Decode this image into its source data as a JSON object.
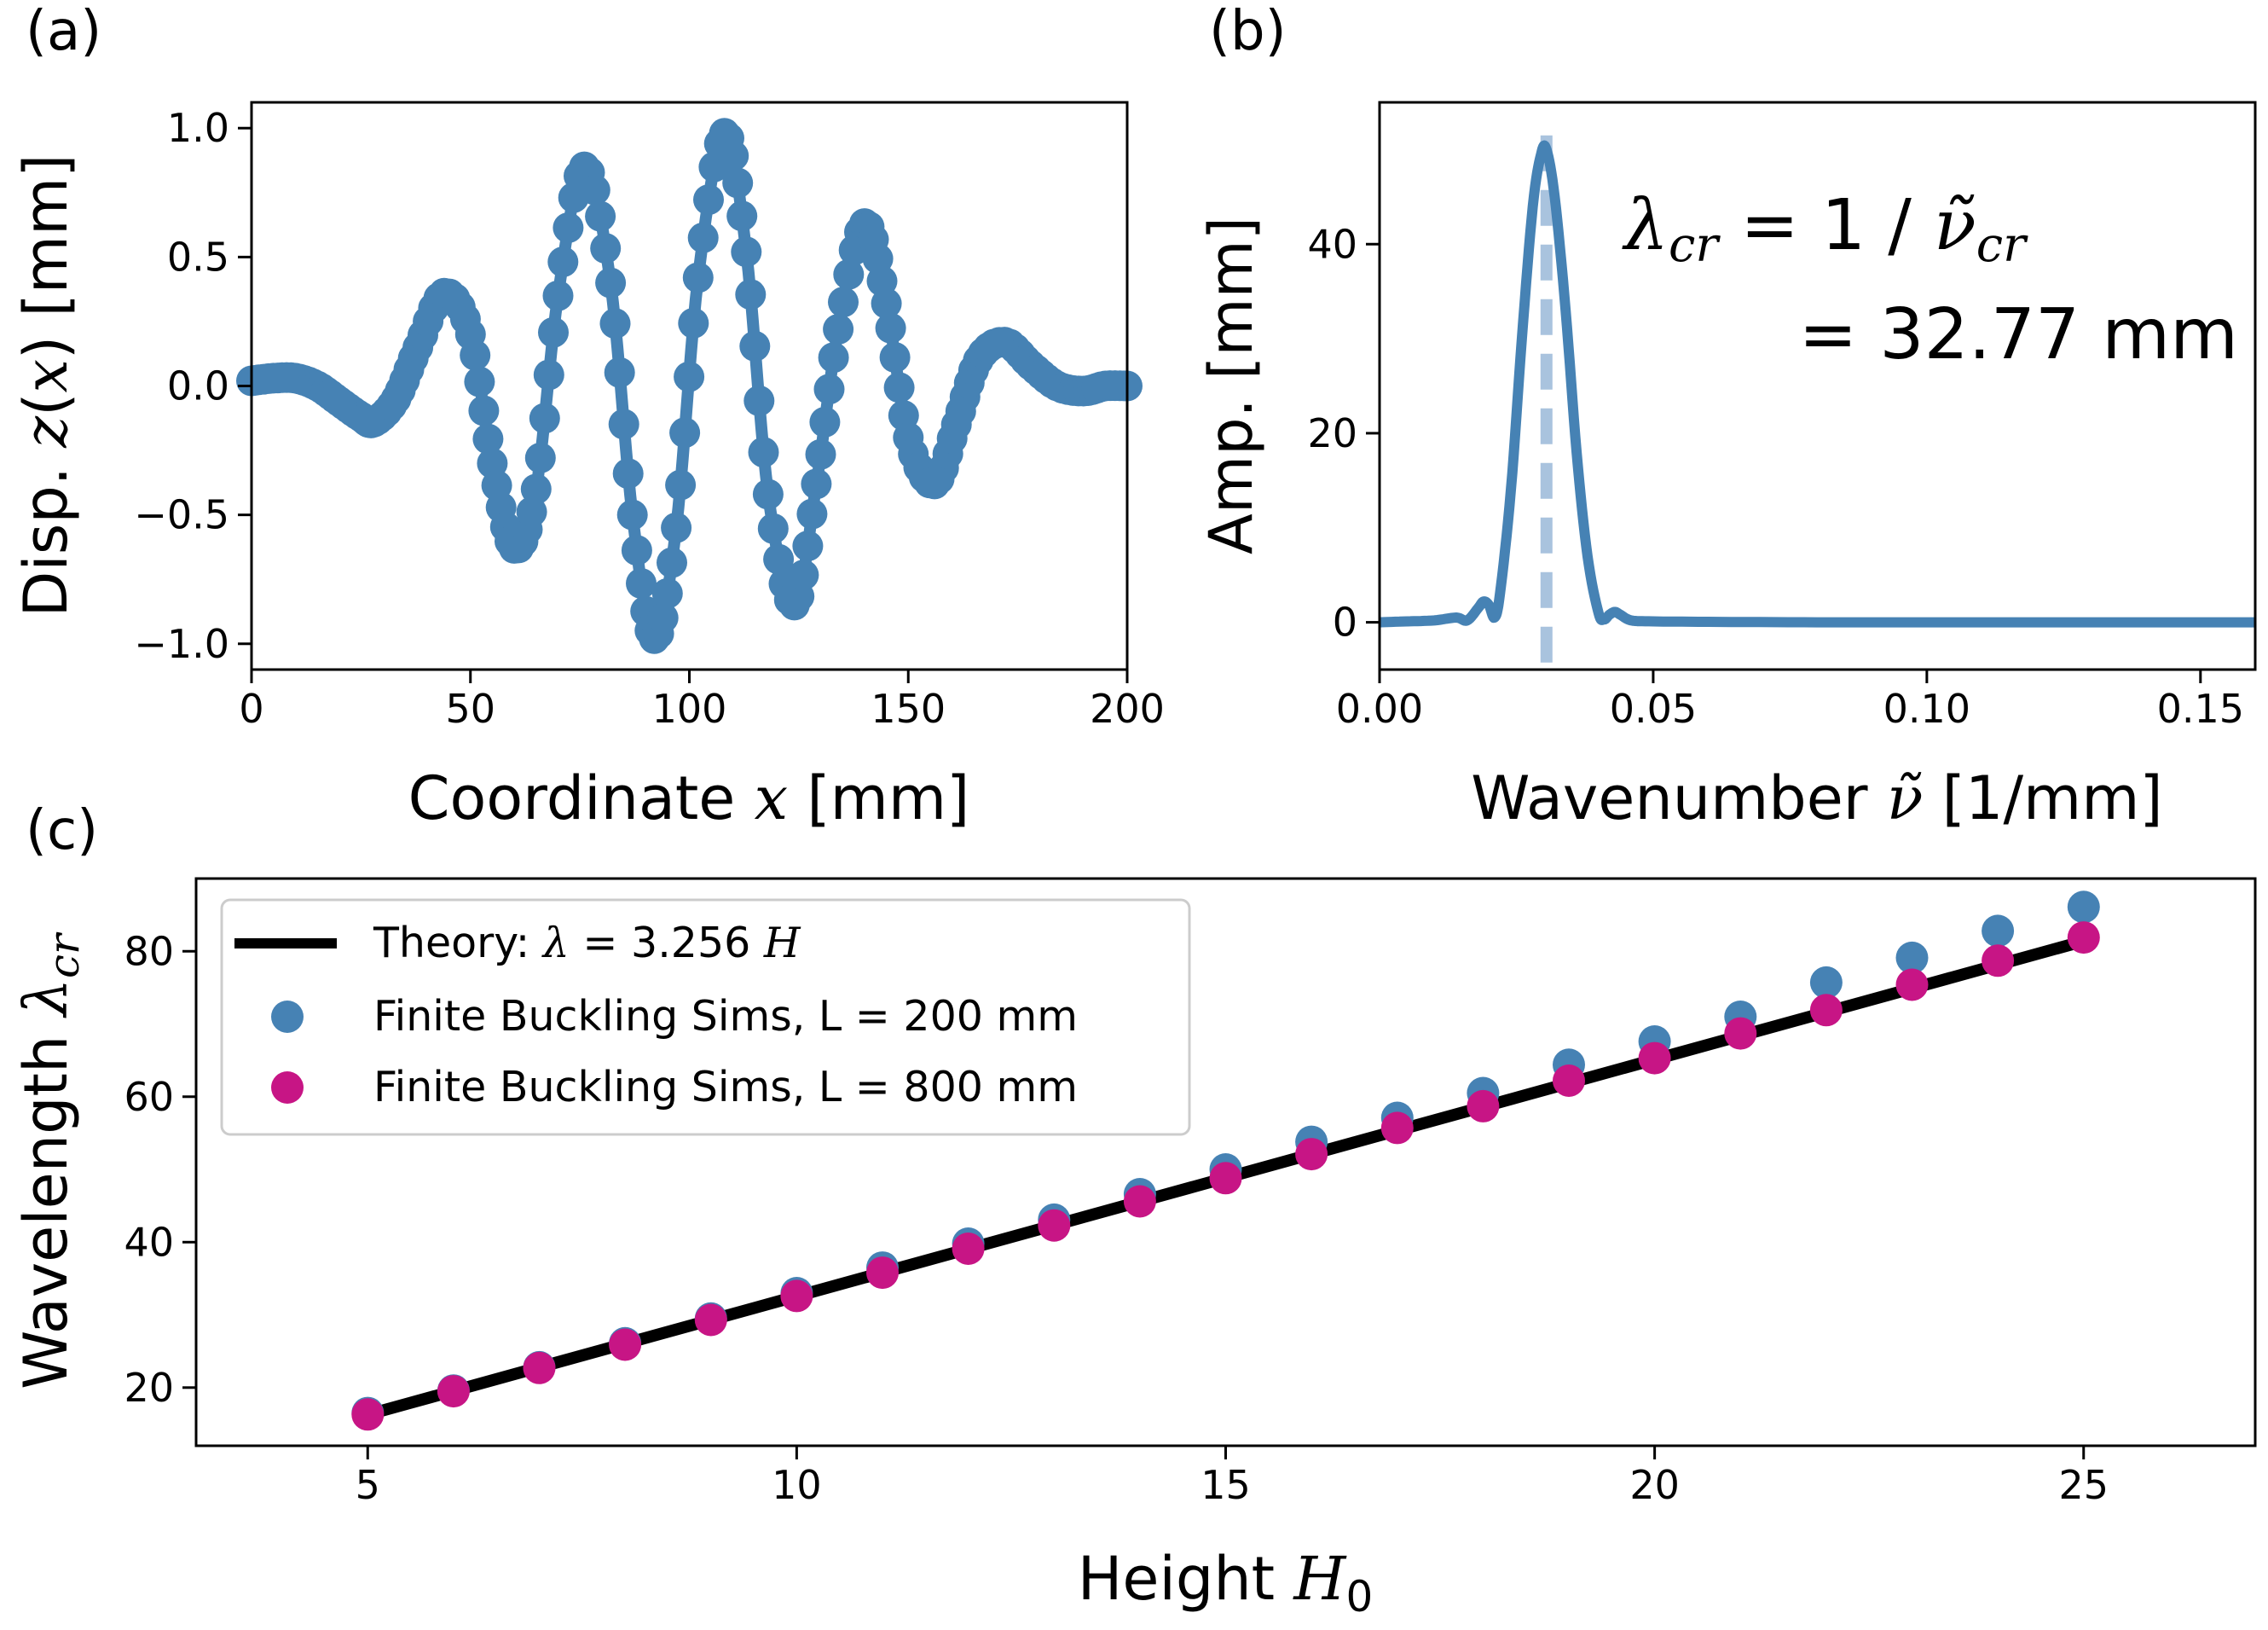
{
  "chart_data": [
    {
      "panel": "(a)",
      "type": "line",
      "xlabel": "Coordinate x [mm]",
      "ylabel": "Disp. z(x) [mm]",
      "xlim": [
        0,
        200
      ],
      "ylim": [
        -1.1,
        1.1
      ],
      "xticks": [
        0,
        50,
        100,
        150,
        200
      ],
      "yticks": [
        -1.0,
        -0.5,
        0.0,
        0.5,
        1.0
      ],
      "ytick_labels": [
        "−1.0",
        "−0.5",
        "0.0",
        "0.5",
        "1.0"
      ],
      "grid": false,
      "color": "#4682b4",
      "marker": "circle",
      "x": [
        0,
        5,
        10,
        15,
        20,
        25,
        28,
        33,
        38,
        44,
        50,
        55,
        60,
        65,
        70,
        76,
        82,
        87,
        92,
        97,
        102,
        108,
        113,
        118,
        124,
        129,
        134,
        140,
        145,
        150,
        156,
        161,
        166,
        172,
        178,
        184,
        190,
        195,
        200
      ],
      "y": [
        0.02,
        0.03,
        0.03,
        0.0,
        -0.06,
        -0.12,
        -0.14,
        -0.05,
        0.15,
        0.36,
        0.2,
        -0.3,
        -0.63,
        -0.4,
        0.35,
        0.85,
        0.4,
        -0.5,
        -0.98,
        -0.55,
        0.42,
        0.98,
        0.52,
        -0.42,
        -0.85,
        -0.38,
        0.22,
        0.63,
        0.32,
        -0.2,
        -0.38,
        -0.15,
        0.1,
        0.17,
        0.08,
        0.0,
        -0.02,
        0.0,
        0.0
      ]
    },
    {
      "panel": "(b)",
      "type": "line",
      "xlabel": "Wavenumber ν̃ [1/mm]",
      "ylabel": "Amp. [mm]",
      "xlim": [
        0,
        0.16
      ],
      "ylim": [
        -5,
        55
      ],
      "xticks": [
        0.0,
        0.05,
        0.1,
        0.15
      ],
      "xtick_labels": [
        "0.00",
        "0.05",
        "0.10",
        "0.15"
      ],
      "yticks": [
        0,
        20,
        40
      ],
      "grid": false,
      "color": "#4682b4",
      "x": [
        0.0,
        0.005,
        0.01,
        0.014,
        0.016,
        0.018,
        0.019,
        0.02,
        0.021,
        0.022,
        0.024,
        0.026,
        0.028,
        0.0295,
        0.0305,
        0.032,
        0.034,
        0.036,
        0.038,
        0.04,
        0.041,
        0.042,
        0.043,
        0.044,
        0.046,
        0.05,
        0.06,
        0.08,
        0.1,
        0.12,
        0.14,
        0.16
      ],
      "y": [
        0.0,
        0.1,
        0.2,
        0.5,
        0.2,
        1.5,
        2.2,
        1.8,
        0.5,
        3.0,
        14,
        30,
        44,
        49.5,
        50,
        45,
        33,
        18,
        7,
        1.0,
        0.3,
        0.8,
        1.1,
        0.8,
        0.2,
        0.1,
        0.05,
        0.0,
        0.0,
        0.0,
        0.0,
        0.0
      ],
      "vline_x": 0.0305,
      "annotation_line1": "λcr = 1 / ν̃cr",
      "annotation_line2": "= 32.77 mm"
    },
    {
      "panel": "(c)",
      "type": "scatter",
      "xlabel": "Height H0",
      "ylabel": "Wavelength λcr",
      "xlim": [
        3,
        27
      ],
      "ylim": [
        12,
        90
      ],
      "xticks": [
        5,
        10,
        15,
        20,
        25
      ],
      "yticks": [
        20,
        40,
        60,
        80
      ],
      "grid": false,
      "legend_placement": "upper left",
      "theory": {
        "name": "Theory: λ = 3.256 H",
        "slope": 3.256,
        "x": [
          5,
          25
        ],
        "color": "#000000"
      },
      "series": [
        {
          "name": "Finite Buckling Sims, L = 200 mm",
          "color": "#4682b4",
          "x": [
            5,
            6,
            7,
            8,
            9,
            10,
            11,
            12,
            13,
            14,
            15,
            16,
            17,
            18,
            19,
            20,
            21,
            22,
            23,
            24,
            25
          ],
          "y": [
            16.5,
            19.6,
            22.8,
            26.1,
            29.5,
            33.0,
            36.5,
            39.8,
            43.1,
            46.6,
            50.0,
            53.8,
            57.1,
            60.5,
            64.4,
            67.6,
            71.0,
            75.7,
            79.1,
            82.8,
            86.1
          ]
        },
        {
          "name": "Finite Buckling Sims, L = 800 mm",
          "color": "#c71585",
          "x": [
            5,
            6,
            7,
            8,
            9,
            10,
            11,
            12,
            13,
            14,
            15,
            16,
            17,
            18,
            19,
            20,
            21,
            22,
            23,
            24,
            25
          ],
          "y": [
            16.3,
            19.5,
            22.7,
            25.9,
            29.3,
            32.6,
            35.8,
            39.1,
            42.3,
            45.6,
            48.8,
            52.1,
            55.7,
            58.7,
            62.2,
            65.3,
            68.7,
            71.9,
            75.4,
            78.7,
            81.9
          ]
        }
      ]
    }
  ]
}
